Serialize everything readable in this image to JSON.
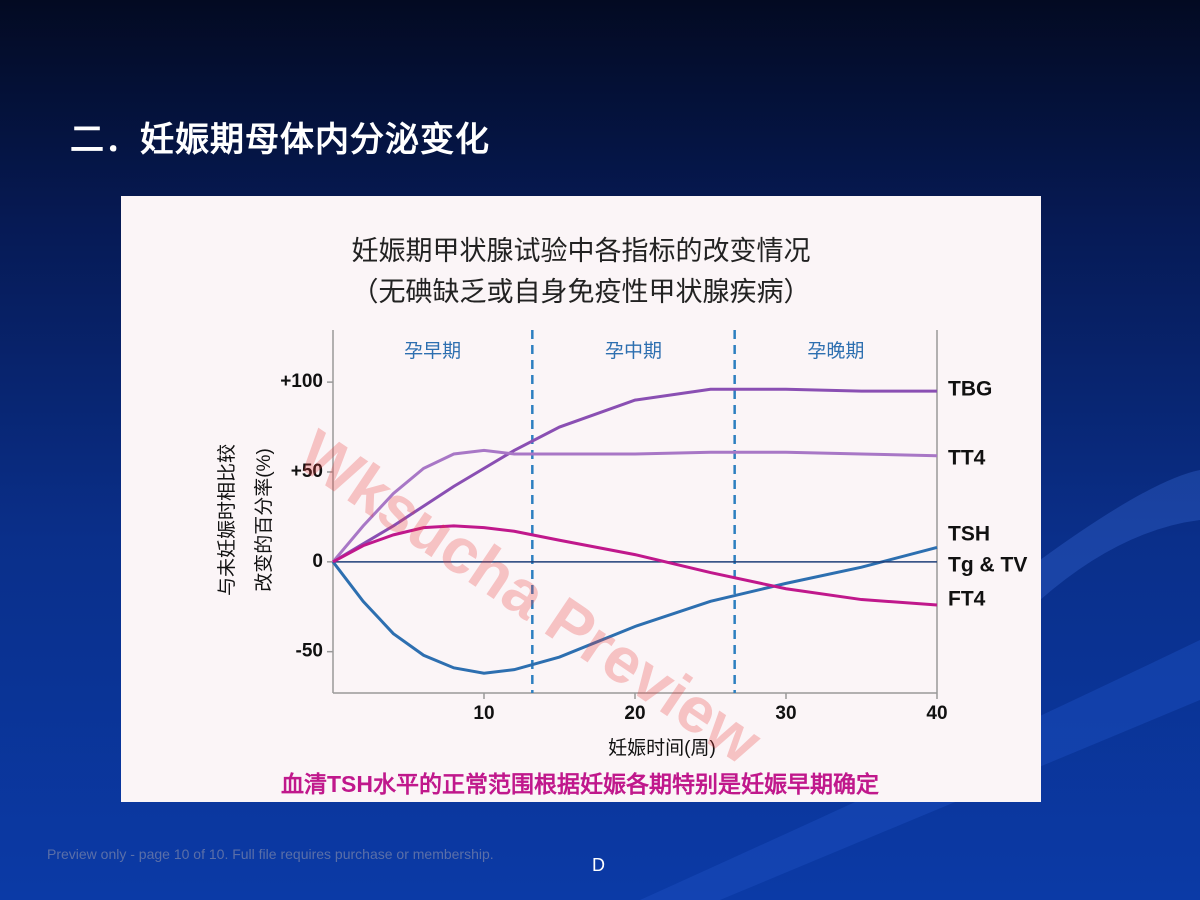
{
  "slide_title": "二．妊娠期母体内分泌变化",
  "footer": "Preview only - page 10 of 10. Full file requires purchase or membership.",
  "page_marker": "D",
  "watermark": "Wksucha Preview",
  "chart_data": {
    "type": "line",
    "title": "妊娠期甲状腺试验中各指标的改变情况",
    "subtitle": "（无碘缺乏或自身免疫性甲状腺疾病）",
    "xlabel": "妊娠时间(周)",
    "ylabel": [
      "与未妊娠时相比较",
      "改变的百分率(%)"
    ],
    "caption": "血清TSH水平的正常范围根据妊娠各期特别是妊娠早期确定",
    "periods": [
      "孕早期",
      "孕中期",
      "孕晚期"
    ],
    "period_boundaries": [
      13.2,
      26.6
    ],
    "x": [
      0,
      2,
      4,
      6,
      8,
      10,
      12,
      15,
      20,
      25,
      30,
      35,
      40
    ],
    "xlim": [
      0,
      40
    ],
    "xticks": [
      10,
      20,
      30,
      40
    ],
    "ylim": [
      -73,
      129
    ],
    "yticks": [
      {
        "value": 100,
        "label": "+100"
      },
      {
        "value": 50,
        "label": "+50"
      },
      0,
      -50
    ],
    "series": [
      {
        "name": "TBG",
        "color": "#8a4fb3",
        "values": [
          0,
          10,
          20,
          31,
          42,
          52,
          62,
          75,
          90,
          96,
          96,
          95,
          95
        ]
      },
      {
        "name": "TT4",
        "color": "#a877c6",
        "values": [
          0,
          20,
          38,
          52,
          60,
          62,
          60,
          60,
          60,
          61,
          61,
          60,
          59
        ]
      },
      {
        "name": "TSH",
        "color": "#2d6fb0",
        "values": [
          0,
          -22,
          -40,
          -52,
          -59,
          -62,
          -60,
          -53,
          -36,
          -22,
          -12,
          -3,
          8
        ]
      },
      {
        "name": "Tg & TV",
        "color": "#1f3f78",
        "values": [
          0,
          0,
          0,
          0,
          0,
          0,
          0,
          0,
          0,
          0,
          0,
          0,
          0
        ]
      },
      {
        "name": "FT4",
        "color": "#c0188c",
        "values": [
          0,
          9,
          15,
          19,
          20,
          19,
          17,
          12,
          4,
          -6,
          -15,
          -21,
          -24
        ]
      }
    ]
  }
}
